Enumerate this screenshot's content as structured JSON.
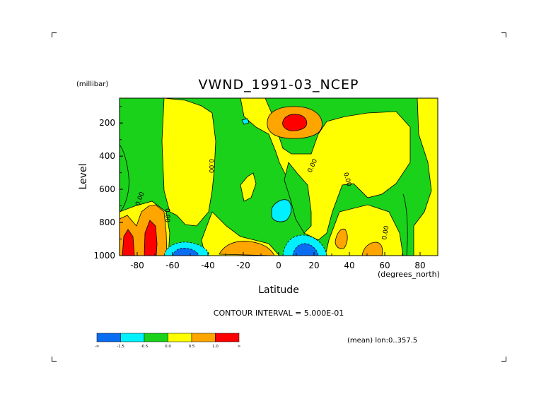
{
  "chart_data": {
    "type": "contour",
    "title": "VWND_1991-03_NCEP",
    "xlabel": "Latitude",
    "ylabel": "Level",
    "y_units": "(millibar)",
    "x_units": "(degrees_north)",
    "x_ticks": [
      "-80",
      "-60",
      "-40",
      "-20",
      "0",
      "20",
      "40",
      "60",
      "80"
    ],
    "y_ticks": [
      "200",
      "400",
      "600",
      "800",
      "1000"
    ],
    "xlim": [
      -90,
      90
    ],
    "ylim": [
      1000,
      50
    ],
    "contour_interval_text": "CONTOUR INTERVAL = 5.000E-01",
    "contour_labels": [
      "0.00",
      "0.00",
      "0.00",
      "0.00",
      "0.00",
      "0.00"
    ],
    "colorbar": {
      "colors": [
        "#0a6cf0",
        "#00f0ff",
        "#19d219",
        "#ffff00",
        "#ffa500",
        "#ff0000"
      ],
      "tick_labels": [
        "-∞",
        "-1.5",
        "-0.5",
        "0.0",
        "0.5",
        "1.0",
        "∞"
      ]
    },
    "footer_text": "(mean) lon:0..357.5"
  }
}
